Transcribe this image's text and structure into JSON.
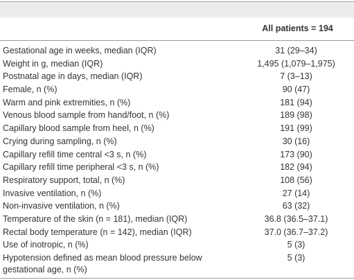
{
  "table": {
    "header": {
      "column": "All patients = 194"
    },
    "rows": [
      [
        "Gestational age in weeks, median (IQR)",
        "31 (29–34)"
      ],
      [
        "Weight in g, median (IQR)",
        "1,495 (1,079–1,975)"
      ],
      [
        "Postnatal age in days, median (IQR)",
        "7 (3–13)"
      ],
      [
        "Female, n (%)",
        "90 (47)"
      ],
      [
        "Warm and pink extremities, n (%)",
        "181 (94)"
      ],
      [
        "Venous blood sample from hand/foot, n (%)",
        "189 (98)"
      ],
      [
        "Capillary blood sample from heel, n (%)",
        "191 (99)"
      ],
      [
        "Crying during sampling, n (%)",
        "30 (16)"
      ],
      [
        "Capillary refill time central <3 s, n (%)",
        "173 (90)"
      ],
      [
        "Capillary refill time peripheral <3 s, n (%)",
        "182 (94)"
      ],
      [
        "Respiratory support, total, n (%)",
        "108 (56)"
      ],
      [
        "Invasive ventilation, n (%)",
        "27 (14)"
      ],
      [
        "Non-invasive ventilation, n (%)",
        "63 (32)"
      ],
      [
        "Temperature of the skin (n = 181), median (IQR)",
        "36.8 (36.5–37.1)"
      ],
      [
        "Rectal body temperature (n = 142), median (IQR)",
        "37.0 (36.7–37.2)"
      ],
      [
        "Use of inotropic, n (%)",
        "5 (3)"
      ],
      [
        "Hypotension defined as mean blood pressure below gestational age, n (%)",
        "5 (3)"
      ]
    ]
  }
}
